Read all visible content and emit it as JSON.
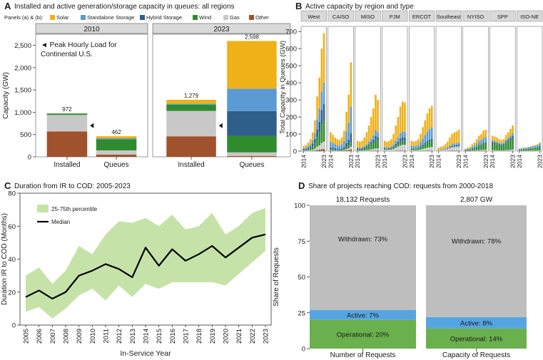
{
  "colors": {
    "solar": "#EFB118",
    "standalone_storage": "#5B9BD5",
    "hybrid_storage": "#2E5F8A",
    "wind": "#2E8B2E",
    "gas": "#C8C8C8",
    "other": "#A0522D",
    "withdrawn": "#BEBEBE",
    "active": "#56A5E0",
    "operational": "#6AB04C",
    "iqr_band": "#C5E3A8",
    "median_line": "#000000",
    "strip": "#D9D9D9"
  },
  "chart_data": [
    {
      "id": "A",
      "type": "bar",
      "letter": "A",
      "title": "Installed and active generation/storage capacity in queues: all regions",
      "legend_title": "Panels (a) & (b):",
      "legend": [
        "Solar",
        "Standalone Storage",
        "Hybrid Storage",
        "Wind",
        "Gas",
        "Other"
      ],
      "ylabel": "Capacity (GW)",
      "ylim": [
        0,
        2750
      ],
      "yticks": [
        "0",
        "500",
        "1,000",
        "1,500",
        "2,000",
        "2,500"
      ],
      "ytick_values": [
        0,
        500,
        1000,
        1500,
        2000,
        2500
      ],
      "categories": [
        "Installed",
        "Queues"
      ],
      "annotation": "Peak Hourly Load for Continental U.S.",
      "annotation_lines": [
        "◄ Peak Hourly Load for",
        "Continental U.S."
      ],
      "peak_load": 700,
      "facets": [
        {
          "label": "2010",
          "bars": [
            {
              "category": "Installed",
              "total_label": "972",
              "total": 972,
              "segments": {
                "other": 570,
                "gas": 370,
                "wind": 32,
                "hybrid_storage": 0,
                "standalone_storage": 0,
                "solar": 0
              }
            },
            {
              "category": "Queues",
              "total_label": "462",
              "total": 462,
              "segments": {
                "other": 50,
                "gas": 95,
                "wind": 250,
                "hybrid_storage": 0,
                "standalone_storage": 22,
                "solar": 45
              }
            }
          ]
        },
        {
          "label": "2023",
          "bars": [
            {
              "category": "Installed",
              "total_label": "1,279",
              "total": 1279,
              "segments": {
                "other": 460,
                "gas": 570,
                "wind": 140,
                "hybrid_storage": 0,
                "standalone_storage": 20,
                "solar": 89
              }
            },
            {
              "category": "Queues",
              "total_label": "2,598",
              "total": 2598,
              "segments": {
                "other": 20,
                "gas": 80,
                "wind": 366,
                "hybrid_storage": 560,
                "standalone_storage": 500,
                "solar": 1072
              }
            }
          ]
        }
      ]
    },
    {
      "id": "B",
      "type": "bar",
      "letter": "B",
      "title": "Active capacity by region and type",
      "ylabel": "Total Capacity in Queues (GW)",
      "ylim": [
        0,
        730
      ],
      "yticks": [
        "0",
        "100",
        "200",
        "300",
        "400",
        "500",
        "600",
        "700"
      ],
      "ytick_values": [
        0,
        100,
        200,
        300,
        400,
        500,
        600,
        700
      ],
      "xtick_labels": [
        "2014",
        "2023"
      ],
      "years": [
        2014,
        2015,
        2016,
        2017,
        2018,
        2019,
        2020,
        2021,
        2022,
        2023
      ],
      "regions": [
        "West",
        "CAISO",
        "MISO",
        "PJM",
        "ERCOT",
        "Southeast",
        "NYISO",
        "SPP",
        "ISO-NE"
      ],
      "series_order": [
        "other",
        "gas",
        "wind",
        "hybrid_storage",
        "standalone_storage",
        "solar"
      ],
      "region_data": [
        {
          "name": "West",
          "totals": [
            30,
            35,
            50,
            70,
            110,
            180,
            320,
            430,
            600,
            690
          ],
          "mix": {
            "other": 0.02,
            "gas": 0.06,
            "wind": 0.18,
            "hybrid_storage": 0.14,
            "standalone_storage": 0.18,
            "solar": 0.42
          }
        },
        {
          "name": "CAISO",
          "totals": [
            110,
            95,
            80,
            70,
            65,
            80,
            120,
            230,
            330,
            520
          ],
          "mix": {
            "other": 0.02,
            "gas": 0.03,
            "wind": 0.05,
            "hybrid_storage": 0.1,
            "standalone_storage": 0.3,
            "solar": 0.5
          }
        },
        {
          "name": "MISO",
          "totals": [
            60,
            55,
            60,
            80,
            110,
            150,
            200,
            250,
            330,
            300
          ],
          "mix": {
            "other": 0.01,
            "gas": 0.04,
            "wind": 0.16,
            "hybrid_storage": 0.06,
            "standalone_storage": 0.1,
            "solar": 0.63
          }
        },
        {
          "name": "PJM",
          "totals": [
            60,
            55,
            60,
            70,
            100,
            150,
            200,
            260,
            290,
            285
          ],
          "mix": {
            "other": 0.01,
            "gas": 0.12,
            "wind": 0.08,
            "hybrid_storage": 0.07,
            "standalone_storage": 0.12,
            "solar": 0.6
          }
        },
        {
          "name": "ERCOT",
          "totals": [
            60,
            55,
            60,
            70,
            100,
            140,
            180,
            220,
            250,
            265
          ],
          "mix": {
            "other": 0.01,
            "gas": 0.08,
            "wind": 0.14,
            "hybrid_storage": 0.04,
            "standalone_storage": 0.25,
            "solar": 0.48
          }
        },
        {
          "name": "Southeast",
          "totals": [
            20,
            25,
            30,
            40,
            55,
            80,
            100,
            110,
            115,
            125
          ],
          "mix": {
            "other": 0.02,
            "gas": 0.2,
            "wind": 0.02,
            "hybrid_storage": 0.06,
            "standalone_storage": 0.1,
            "solar": 0.6
          }
        },
        {
          "name": "NYISO",
          "totals": [
            15,
            20,
            25,
            40,
            50,
            70,
            90,
            100,
            120,
            125
          ],
          "mix": {
            "other": 0.02,
            "gas": 0.05,
            "wind": 0.3,
            "hybrid_storage": 0.03,
            "standalone_storage": 0.25,
            "solar": 0.35
          }
        },
        {
          "name": "SPP",
          "totals": [
            90,
            85,
            80,
            70,
            65,
            70,
            95,
            110,
            130,
            150
          ],
          "mix": {
            "other": 0.01,
            "gas": 0.05,
            "wind": 0.45,
            "hybrid_storage": 0.08,
            "standalone_storage": 0.11,
            "solar": 0.3
          }
        },
        {
          "name": "ISO-NE",
          "totals": [
            15,
            18,
            20,
            22,
            25,
            28,
            32,
            36,
            40,
            50
          ],
          "mix": {
            "other": 0.02,
            "gas": 0.08,
            "wind": 0.45,
            "hybrid_storage": 0.05,
            "standalone_storage": 0.3,
            "solar": 0.1
          }
        }
      ]
    },
    {
      "id": "C",
      "type": "line",
      "letter": "C",
      "title": "Duration from IR to COD: 2005-2023",
      "xlabel": "In-Service Year",
      "ylabel": "Duration IR to COD (Months)",
      "ylim": [
        0,
        80
      ],
      "yticks": [
        "0",
        "20",
        "40",
        "60",
        "80"
      ],
      "ytick_values": [
        0,
        20,
        40,
        60,
        80
      ],
      "x": [
        2005,
        2006,
        2007,
        2008,
        2009,
        2010,
        2011,
        2012,
        2013,
        2014,
        2015,
        2016,
        2017,
        2018,
        2019,
        2020,
        2021,
        2022,
        2023
      ],
      "xtick_labels": [
        "2005",
        "2006",
        "2007",
        "2008",
        "2009",
        "2010",
        "2011",
        "2012",
        "2013",
        "2014",
        "2015",
        "2016",
        "2017",
        "2018",
        "2019",
        "2020",
        "2021",
        "2022",
        "2023"
      ],
      "legend": [
        "25-75th percentile",
        "Median"
      ],
      "median": [
        17,
        21,
        16,
        20,
        30,
        33,
        37,
        34,
        29,
        47,
        36,
        46,
        39,
        43,
        48,
        41,
        47,
        53,
        55
      ],
      "p25": [
        8,
        11,
        4,
        10,
        18,
        22,
        15,
        24,
        17,
        25,
        22,
        26,
        26,
        26,
        26,
        24,
        31,
        38,
        45
      ],
      "p75": [
        30,
        35,
        25,
        33,
        48,
        43,
        55,
        63,
        62,
        65,
        60,
        67,
        58,
        60,
        68,
        55,
        60,
        68,
        71
      ]
    },
    {
      "id": "D",
      "type": "bar",
      "letter": "D",
      "title": "Share of projects reaching COD: requests from 2000-2018",
      "ylabel": "Share of Requests",
      "ylim": [
        0,
        100
      ],
      "yticks": [
        "0",
        "25",
        "50",
        "75",
        "100"
      ],
      "ytick_values": [
        0,
        25,
        50,
        75,
        100
      ],
      "categories": [
        "Number of Requests",
        "Capacity of Requests"
      ],
      "headers": [
        "18,132 Requests",
        "2,807 GW"
      ],
      "series": [
        {
          "name": "Operational",
          "key": "operational",
          "values": [
            20,
            14
          ],
          "labels": [
            "Operational: 20%",
            "Operational: 14%"
          ]
        },
        {
          "name": "Active",
          "key": "active",
          "values": [
            7,
            8
          ],
          "labels": [
            "Active: 7%",
            "Active: 8%"
          ]
        },
        {
          "name": "Withdrawn",
          "key": "withdrawn",
          "values": [
            73,
            78
          ],
          "labels": [
            "Withdrawn: 73%",
            "Withdrawn: 78%"
          ]
        }
      ]
    }
  ]
}
